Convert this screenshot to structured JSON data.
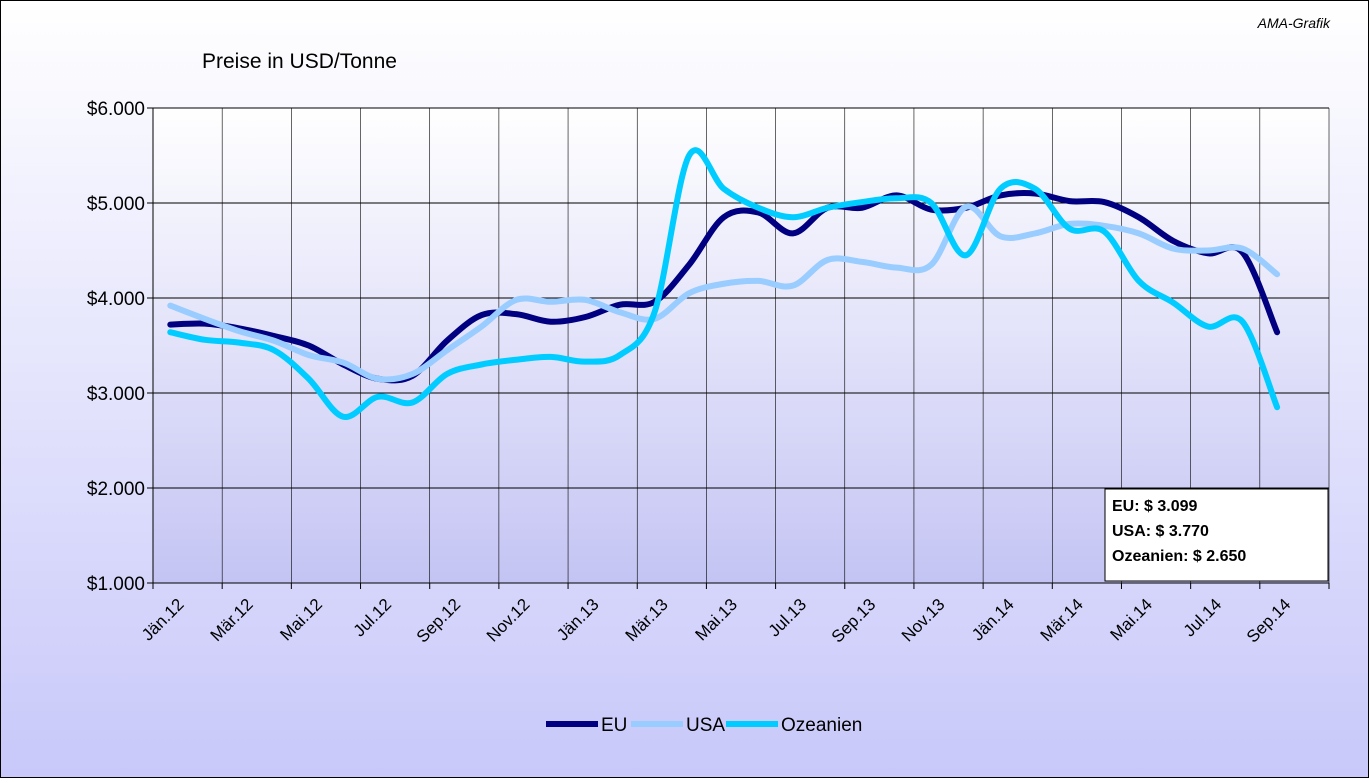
{
  "chart_data": {
    "type": "line",
    "title": "Preise in USD/Tonne",
    "source": "AMA-Grafik",
    "annotation": [
      "EU: $ 3.099",
      "USA: $ 3.770",
      "Ozeanien: $ 2.650"
    ],
    "categories": [
      "Jän.12",
      null,
      "Mär.12",
      null,
      "Mai.12",
      null,
      "Jul.12",
      null,
      "Sep.12",
      null,
      "Nov.12",
      null,
      "Jän.13",
      null,
      "Mär.13",
      null,
      "Mai.13",
      null,
      "Jul.13",
      null,
      "Sep.13",
      null,
      "Nov.13",
      null,
      "Jän.14",
      null,
      "Mär.14",
      null,
      "Mai.14",
      null,
      "Jul.14",
      null,
      "Sep.14",
      null
    ],
    "series": [
      {
        "name": "EU",
        "color": "#000080",
        "values": [
          3720,
          3730,
          3680,
          3600,
          3500,
          3300,
          3150,
          3180,
          3550,
          3820,
          3830,
          3750,
          3800,
          3930,
          3960,
          4350,
          4850,
          4900,
          4680,
          4950,
          4950,
          5080,
          4930,
          4950,
          5080,
          5100,
          5020,
          5010,
          4850,
          4600,
          4470,
          4480,
          3640,
          null
        ]
      },
      {
        "name": "USA",
        "color": "#99ccff",
        "values": [
          3920,
          3780,
          3650,
          3550,
          3400,
          3320,
          3150,
          3200,
          3450,
          3700,
          3980,
          3960,
          3980,
          3850,
          3780,
          4050,
          4150,
          4180,
          4130,
          4400,
          4380,
          4320,
          4350,
          4960,
          4650,
          4680,
          4780,
          4760,
          4680,
          4520,
          4500,
          4520,
          4250,
          null
        ]
      },
      {
        "name": "Ozeanien",
        "color": "#00ccff",
        "values": [
          3640,
          3560,
          3530,
          3450,
          3150,
          2750,
          2960,
          2900,
          3200,
          3300,
          3350,
          3380,
          3330,
          3400,
          3850,
          5500,
          5150,
          4950,
          4850,
          4950,
          5010,
          5050,
          5000,
          4450,
          5150,
          5150,
          4730,
          4700,
          4180,
          3950,
          3700,
          3750,
          2850,
          null
        ]
      }
    ],
    "ylim": [
      1000,
      6000
    ],
    "yticks": [
      {
        "value": 1000,
        "label": "$1.000"
      },
      {
        "value": 2000,
        "label": "$2.000"
      },
      {
        "value": 3000,
        "label": "$3.000"
      },
      {
        "value": 4000,
        "label": "$4.000"
      },
      {
        "value": 5000,
        "label": "$5.000"
      },
      {
        "value": 6000,
        "label": "$6.000"
      }
    ],
    "grid": true,
    "legend": "bottom"
  }
}
